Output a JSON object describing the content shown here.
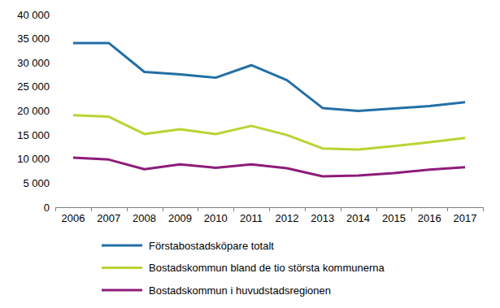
{
  "chart_data": {
    "type": "line",
    "categories": [
      "2006",
      "2007",
      "2008",
      "2009",
      "2010",
      "2011",
      "2012",
      "2013",
      "2014",
      "2015",
      "2016",
      "2017"
    ],
    "series": [
      {
        "name": "Förstabostadsköpare totalt",
        "color": "#236fa6",
        "values": [
          34100,
          34100,
          28100,
          27600,
          26900,
          29500,
          26400,
          20600,
          20000,
          20500,
          21000,
          21800
        ]
      },
      {
        "name": "Bostadskommun bland de tio största kommunerna",
        "color": "#b8d432",
        "values": [
          19100,
          18800,
          15200,
          16200,
          15200,
          16900,
          15000,
          12200,
          12000,
          12700,
          13500,
          14400
        ]
      },
      {
        "name": "Bostadskommun i huvudstadsregionen",
        "color": "#8e1c79",
        "values": [
          10300,
          9900,
          7900,
          8900,
          8200,
          8900,
          8100,
          6400,
          6600,
          7100,
          7800,
          8300
        ]
      }
    ],
    "ylim": [
      0,
      40000
    ],
    "yticks": [
      0,
      {
        "value": 5000,
        "label": "5 000"
      },
      {
        "value": 10000,
        "label": "10 000"
      },
      {
        "value": 15000,
        "label": "15 000"
      },
      {
        "value": 20000,
        "label": "20 000"
      },
      {
        "value": 25000,
        "label": "25 000"
      },
      {
        "value": 30000,
        "label": "30 000"
      },
      {
        "value": 35000,
        "label": "35 000"
      },
      {
        "value": 40000,
        "label": "40 000"
      }
    ],
    "grid": false,
    "legend": "bottom"
  }
}
